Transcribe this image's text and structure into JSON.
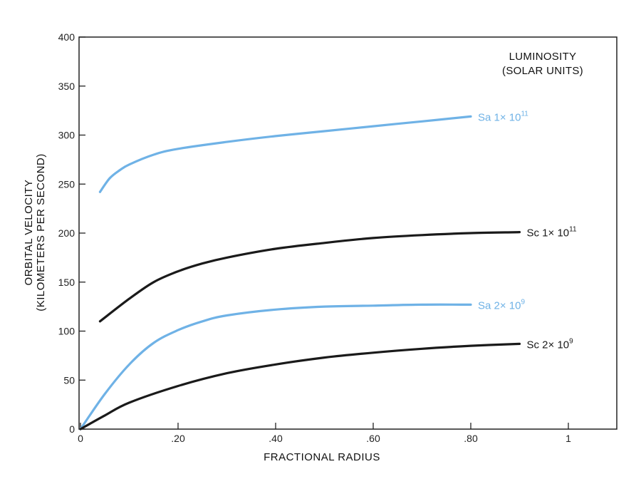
{
  "chart_data": {
    "type": "line",
    "xlabel": "FRACTIONAL RADIUS",
    "ylabel_line1": "ORBITAL VELOCITY",
    "ylabel_line2": "(KILOMETERS PER SECOND)",
    "xlim": [
      0,
      1.1
    ],
    "ylim": [
      0,
      400
    ],
    "x_ticks": [
      0,
      0.2,
      0.4,
      0.6,
      0.8,
      1.0
    ],
    "x_tick_labels": [
      "0",
      ".20",
      ".40",
      ".60",
      ".80",
      "1"
    ],
    "y_ticks": [
      0,
      50,
      100,
      150,
      200,
      250,
      300,
      350,
      400
    ],
    "y_tick_labels": [
      "0",
      "50",
      "100",
      "150",
      "200",
      "250",
      "300",
      "350",
      "400"
    ],
    "legend_title_line1": "LUMINOSITY",
    "legend_title_line2": "(SOLAR UNITS)",
    "legend_placement": "top-right",
    "grid": false,
    "series": [
      {
        "name": "Sa 1× 10¹¹",
        "label_base": "Sa  1× 10",
        "label_exp": "11",
        "color": "#6fb2e6",
        "x": [
          0.04,
          0.06,
          0.08,
          0.1,
          0.15,
          0.2,
          0.3,
          0.4,
          0.5,
          0.6,
          0.7,
          0.8
        ],
        "y": [
          242,
          256,
          264,
          270,
          280,
          286,
          293,
          299,
          304,
          309,
          314,
          319
        ]
      },
      {
        "name": "Sc 1× 10¹¹",
        "label_base": "Sc  1× 10",
        "label_exp": "11",
        "color": "#1a1a1a",
        "x": [
          0.04,
          0.1,
          0.15,
          0.2,
          0.25,
          0.3,
          0.4,
          0.5,
          0.6,
          0.7,
          0.8,
          0.9
        ],
        "y": [
          110,
          133,
          150,
          161,
          169,
          175,
          184,
          190,
          195,
          198,
          200,
          201
        ]
      },
      {
        "name": "Sa 2× 10⁹",
        "label_base": "Sa  2× 10",
        "label_exp": "9",
        "color": "#6fb2e6",
        "x": [
          0,
          0.05,
          0.1,
          0.15,
          0.2,
          0.25,
          0.3,
          0.4,
          0.5,
          0.6,
          0.7,
          0.8
        ],
        "y": [
          0,
          36,
          66,
          88,
          101,
          110,
          116,
          122,
          125,
          126,
          127,
          127
        ]
      },
      {
        "name": "Sc 2× 10⁹",
        "label_base": "Sc  2× 10",
        "label_exp": "9",
        "color": "#1a1a1a",
        "x": [
          0,
          0.05,
          0.1,
          0.2,
          0.3,
          0.4,
          0.5,
          0.6,
          0.7,
          0.8,
          0.9
        ],
        "y": [
          0,
          14,
          27,
          44,
          57,
          66,
          73,
          78,
          82,
          85,
          87
        ]
      }
    ]
  }
}
